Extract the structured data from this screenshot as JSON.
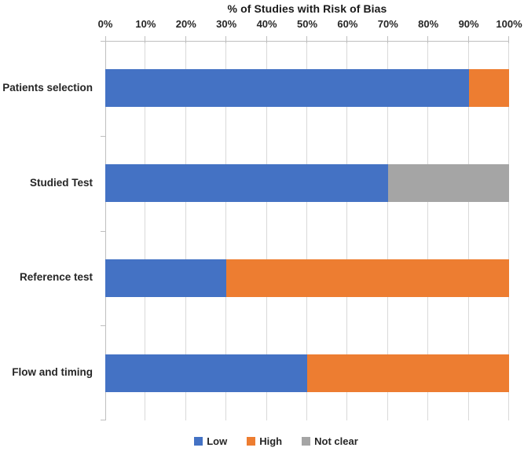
{
  "chart_data": {
    "type": "bar",
    "orientation": "horizontal",
    "stacked": true,
    "title": "% of Studies with Risk of Bias",
    "categories": [
      "Patients selection",
      "Studied Test",
      "Reference test",
      "Flow and timing"
    ],
    "series": [
      {
        "name": "Low",
        "color": "#4472C4",
        "values": [
          90,
          70,
          30,
          50
        ]
      },
      {
        "name": "High",
        "color": "#ED7D31",
        "values": [
          10,
          0,
          70,
          50
        ]
      },
      {
        "name": "Not clear",
        "color": "#A5A5A5",
        "values": [
          0,
          30,
          0,
          0
        ]
      }
    ],
    "x_axis": {
      "position": "top",
      "min": 0,
      "max": 100,
      "step": 10,
      "tick_labels": [
        "0%",
        "10%",
        "20%",
        "30%",
        "40%",
        "50%",
        "60%",
        "70%",
        "80%",
        "90%",
        "100%"
      ]
    },
    "legend": {
      "position": "bottom",
      "entries": [
        "Low",
        "High",
        "Not clear"
      ]
    },
    "grid": true,
    "colors": {
      "gridline": "#D9D9D9",
      "axis_line": "#BFBFBF",
      "text": "#262626"
    }
  }
}
